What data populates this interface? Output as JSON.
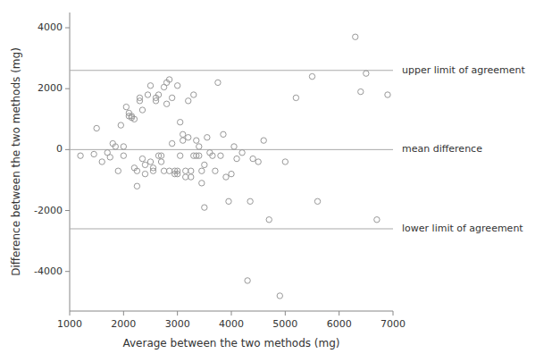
{
  "chart_data": {
    "type": "scatter",
    "xlabel": "Average between the two methods (mg)",
    "ylabel": "Difference between the two methods (mg)",
    "x": [
      1200,
      1450,
      1500,
      1600,
      1700,
      1750,
      1800,
      1850,
      1900,
      1950,
      2000,
      2000,
      2050,
      2100,
      2100,
      2150,
      2150,
      2200,
      2200,
      2250,
      2250,
      2300,
      2300,
      2350,
      2350,
      2400,
      2400,
      2450,
      2500,
      2500,
      2550,
      2550,
      2600,
      2600,
      2650,
      2650,
      2700,
      2700,
      2750,
      2750,
      2800,
      2800,
      2850,
      2850,
      2900,
      2900,
      2950,
      2950,
      3000,
      3000,
      3000,
      3050,
      3050,
      3100,
      3100,
      3150,
      3150,
      3200,
      3200,
      3250,
      3250,
      3300,
      3300,
      3350,
      3350,
      3400,
      3400,
      3450,
      3450,
      3500,
      3500,
      3550,
      3600,
      3650,
      3700,
      3750,
      3800,
      3850,
      3900,
      3950,
      4000,
      4050,
      4100,
      4200,
      4300,
      4350,
      4400,
      4500,
      4600,
      4700,
      4900,
      5000,
      5200,
      5500,
      5600,
      6300,
      6400,
      6500,
      6700,
      6900
    ],
    "values": [
      -200,
      -150,
      700,
      -400,
      -100,
      -250,
      200,
      100,
      -700,
      800,
      100,
      -200,
      1400,
      1200,
      1100,
      1100,
      1050,
      1000,
      -600,
      -700,
      -1200,
      1700,
      1600,
      1300,
      -300,
      -500,
      -800,
      1800,
      -400,
      2100,
      -700,
      -600,
      1700,
      1600,
      1800,
      -200,
      -200,
      -400,
      2050,
      -700,
      2200,
      1500,
      -700,
      2300,
      1700,
      200,
      -800,
      -700,
      2100,
      -700,
      -800,
      900,
      -200,
      500,
      300,
      -700,
      -900,
      1600,
      400,
      -700,
      -900,
      1800,
      -200,
      300,
      -200,
      100,
      -200,
      -1100,
      -700,
      -500,
      -1900,
      400,
      -100,
      -200,
      -700,
      2200,
      -200,
      500,
      -900,
      -1700,
      -800,
      100,
      -300,
      -100,
      -4300,
      -1700,
      -300,
      -400,
      300,
      -2300,
      -4800,
      -400,
      1700,
      2400,
      -1700,
      3700,
      1900,
      2500,
      -2300,
      1800
    ],
    "color": "#999999",
    "marker": "open-circle",
    "annotations": [
      {
        "y": 2600,
        "text": "upper limit of agreement"
      },
      {
        "y": 0,
        "text": "mean difference"
      },
      {
        "y": -2600,
        "text": "lower limit of agreement"
      }
    ],
    "xlim": [
      1000,
      7000
    ],
    "ylim": [
      -5300,
      4500
    ],
    "xticks": [
      1000,
      2000,
      3000,
      4000,
      5000,
      6000,
      7000
    ],
    "yticks": [
      -4000,
      -2000,
      0,
      2000,
      4000
    ],
    "grid": false
  }
}
